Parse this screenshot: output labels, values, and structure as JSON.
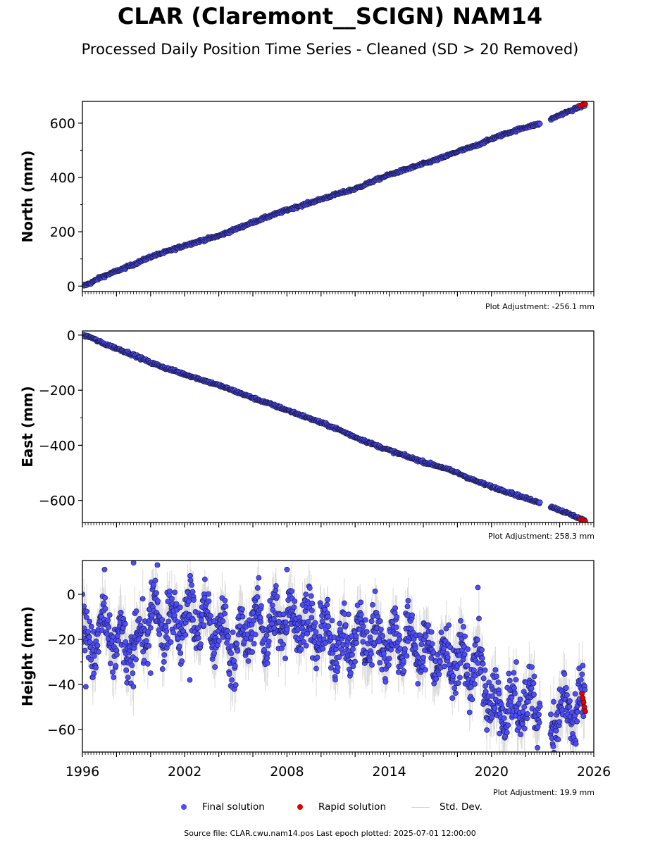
{
  "title": "CLAR (Claremont__SCIGN) NAM14",
  "subtitle": "Processed Daily Position Time Series - Cleaned (SD > 20 Removed)",
  "legend": {
    "final": "Final solution",
    "rapid": "Rapid solution",
    "std": "Std. Dev."
  },
  "footer": "Source file: CLAR.cwu.nam14.pos  Last epoch plotted: 2025-07-01 12:00:00",
  "colors": {
    "final": "#4c4cff",
    "rapid": "#e00000",
    "std": "#bbbbbb",
    "edge": "#1a1a40"
  },
  "chart_data": [
    {
      "type": "scatter",
      "ylabel": "North (mm)",
      "adjustment": "Plot Adjustment: -256.1 mm",
      "xlim": [
        1996,
        2026
      ],
      "ylim": [
        -20,
        680
      ],
      "yticks": [
        0,
        200,
        400,
        600
      ],
      "ytick_labels": [
        "0",
        "200",
        "400",
        "600"
      ],
      "series": [
        {
          "name": "Final solution",
          "x": [
            1996.0,
            1996.5,
            1997.0,
            1998.0,
            1999.0,
            2000.0,
            2001.0,
            2002.0,
            2003.0,
            2004.0,
            2005.0,
            2006.0,
            2007.0,
            2008.0,
            2009.0,
            2010.0,
            2011.0,
            2012.0,
            2013.0,
            2014.0,
            2015.0,
            2016.0,
            2017.0,
            2018.0,
            2019.0,
            2020.0,
            2021.0,
            2022.0,
            2023.0,
            2024.0,
            2025.0,
            2025.4
          ],
          "y": [
            0,
            12,
            30,
            55,
            80,
            108,
            128,
            150,
            168,
            185,
            210,
            235,
            258,
            280,
            300,
            320,
            340,
            358,
            385,
            410,
            430,
            450,
            470,
            495,
            515,
            542,
            565,
            585,
            600,
            630,
            655,
            665
          ]
        },
        {
          "name": "Rapid solution",
          "x": [
            2025.2,
            2025.35,
            2025.5
          ],
          "y": [
            665,
            668,
            670
          ]
        }
      ]
    },
    {
      "type": "scatter",
      "ylabel": "East (mm)",
      "adjustment": "Plot Adjustment: 258.3 mm",
      "xlim": [
        1996,
        2026
      ],
      "ylim": [
        -680,
        15
      ],
      "yticks": [
        0,
        -200,
        -400,
        -600
      ],
      "ytick_labels": [
        "0",
        "−200",
        "−400",
        "−600"
      ],
      "series": [
        {
          "name": "Final solution",
          "x": [
            1996.0,
            1996.5,
            1997.0,
            1998.0,
            1999.0,
            2000.0,
            2001.0,
            2002.0,
            2003.0,
            2004.0,
            2005.0,
            2006.0,
            2007.0,
            2008.0,
            2009.0,
            2010.0,
            2011.0,
            2012.0,
            2013.0,
            2014.0,
            2015.0,
            2016.0,
            2017.0,
            2018.0,
            2019.0,
            2020.0,
            2021.0,
            2022.0,
            2023.0,
            2024.0,
            2025.0,
            2025.4
          ],
          "y": [
            0,
            -8,
            -25,
            -48,
            -72,
            -100,
            -122,
            -142,
            -162,
            -182,
            -205,
            -228,
            -250,
            -272,
            -295,
            -318,
            -342,
            -370,
            -395,
            -418,
            -440,
            -460,
            -478,
            -500,
            -528,
            -550,
            -570,
            -592,
            -610,
            -635,
            -660,
            -672
          ]
        },
        {
          "name": "Rapid solution",
          "x": [
            2025.2,
            2025.35,
            2025.5
          ],
          "y": [
            -668,
            -672,
            -675
          ]
        }
      ]
    },
    {
      "type": "scatter",
      "ylabel": "Height (mm)",
      "adjustment": "Plot Adjustment: 19.9 mm",
      "xlim": [
        1996,
        2026
      ],
      "ylim": [
        -70,
        15
      ],
      "yticks": [
        0,
        -20,
        -40,
        -60
      ],
      "ytick_labels": [
        "0",
        "−20",
        "−40",
        "−60"
      ],
      "xticks": [
        1996,
        2002,
        2008,
        2014,
        2020,
        2026
      ],
      "xtick_labels": [
        "1996",
        "2002",
        "2008",
        "2014",
        "2020",
        "2026"
      ],
      "series": [
        {
          "name": "Final solution",
          "x": [
            1996.0,
            1996.5,
            1997.0,
            1998.0,
            1999.0,
            2000.0,
            2001.0,
            2002.0,
            2003.0,
            2004.0,
            2005.0,
            2006.0,
            2007.0,
            2008.0,
            2009.0,
            2010.0,
            2011.0,
            2012.0,
            2013.0,
            2014.0,
            2015.0,
            2016.0,
            2017.0,
            2018.0,
            2019.0,
            2019.5,
            2020.0,
            2021.0,
            2022.0,
            2022.8,
            2023.5,
            2024.0,
            2024.5,
            2025.0
          ],
          "y": [
            -20,
            -25,
            -15,
            -22,
            -25,
            -10,
            -15,
            -8,
            -12,
            -15,
            -25,
            -12,
            -15,
            -10,
            -12,
            -18,
            -22,
            -20,
            -18,
            -22,
            -20,
            -25,
            -28,
            -30,
            -32,
            -35,
            -50,
            -52,
            -48,
            -50,
            -55,
            -52,
            -48,
            -50
          ]
        },
        {
          "name": "Rapid solution",
          "x": [
            2025.3,
            2025.35,
            2025.4,
            2025.45,
            2025.5
          ],
          "y": [
            -44,
            -46,
            -48,
            -50,
            -52
          ]
        }
      ]
    }
  ]
}
